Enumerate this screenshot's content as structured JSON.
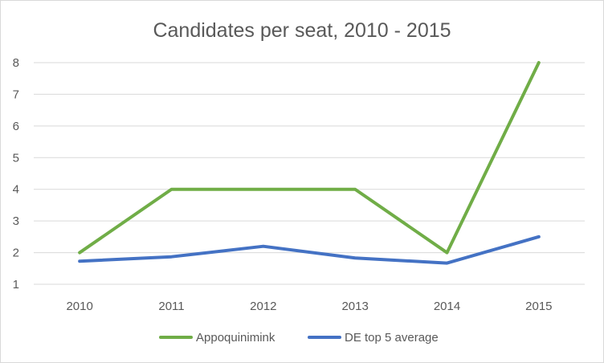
{
  "chart_data": {
    "type": "line",
    "title": "Candidates per seat, 2010 - 2015",
    "xlabel": "",
    "ylabel": "",
    "categories": [
      "2010",
      "2011",
      "2012",
      "2013",
      "2014",
      "2015"
    ],
    "ylim": [
      1,
      8
    ],
    "yticks": [
      1,
      2,
      3,
      4,
      5,
      6,
      7,
      8
    ],
    "grid": true,
    "legend_position": "bottom",
    "series": [
      {
        "name": "Appoquinimink",
        "color": "#70ad47",
        "values": [
          2,
          4,
          4,
          4,
          2,
          8
        ]
      },
      {
        "name": "DE top 5 average",
        "color": "#4472c4",
        "values": [
          1.73,
          1.87,
          2.2,
          1.83,
          1.67,
          2.5
        ]
      }
    ]
  }
}
